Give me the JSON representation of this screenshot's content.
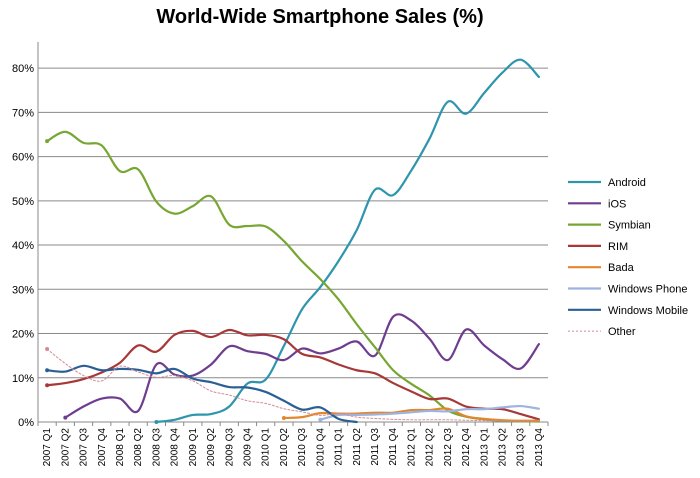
{
  "chart_data": {
    "type": "line",
    "title": "World-Wide Smartphone Sales (%)",
    "xlabel": "",
    "ylabel": "",
    "ylim": [
      0,
      85
    ],
    "yticks": [
      0,
      10,
      20,
      30,
      40,
      50,
      60,
      70,
      80
    ],
    "ytick_labels": [
      "0%",
      "10%",
      "20%",
      "30%",
      "40%",
      "50%",
      "60%",
      "70%",
      "80%"
    ],
    "grid": true,
    "legend_position": "right",
    "categories": [
      "2007 Q1",
      "2007 Q2",
      "2007 Q3",
      "2007 Q4",
      "2008 Q1",
      "2008 Q2",
      "2008 Q3",
      "2008 Q4",
      "2009 Q1",
      "2009 Q2",
      "2009 Q3",
      "2009 Q4",
      "2010 Q1",
      "2010 Q2",
      "2010 Q3",
      "2010 Q4",
      "2011 Q1",
      "2011 Q2",
      "2011 Q3",
      "2011 Q4",
      "2012 Q1",
      "2012 Q2",
      "2012 Q3",
      "2012 Q4",
      "2013 Q1",
      "2013 Q2",
      "2013 Q3",
      "2013 Q4"
    ],
    "series": [
      {
        "name": "Android",
        "color": "#2e95ac",
        "dashed": false,
        "values": [
          null,
          null,
          null,
          null,
          null,
          null,
          0,
          0.5,
          1.6,
          1.8,
          3.5,
          8.7,
          9.6,
          17.2,
          25.5,
          30.5,
          36.4,
          43.4,
          52.5,
          51.3,
          56.9,
          64.1,
          72.4,
          69.7,
          74.4,
          79.0,
          81.9,
          78.0
        ]
      },
      {
        "name": "iOS",
        "color": "#6e3d8f",
        "dashed": false,
        "values": [
          null,
          1,
          3.5,
          5.3,
          5.3,
          2.5,
          13.0,
          10.7,
          10.5,
          13.0,
          17.1,
          16.0,
          15.4,
          14.0,
          16.6,
          15.5,
          16.6,
          18.2,
          15.0,
          23.8,
          22.9,
          18.8,
          14.0,
          20.9,
          17.3,
          14.2,
          12.1,
          17.6
        ]
      },
      {
        "name": "Symbian",
        "color": "#77a633",
        "dashed": false,
        "values": [
          63.5,
          65.6,
          63.1,
          62.5,
          56.7,
          57.1,
          49.8,
          47.1,
          48.8,
          51.0,
          44.6,
          44.3,
          44.2,
          40.9,
          36.3,
          32.3,
          27.7,
          22.1,
          16.9,
          11.7,
          8.6,
          6.0,
          2.6,
          1.2,
          0.6,
          0.3,
          0.2,
          0.1
        ]
      },
      {
        "name": "RIM",
        "color": "#a83838",
        "dashed": false,
        "values": [
          8.3,
          8.8,
          9.7,
          11.2,
          13.4,
          17.3,
          15.9,
          19.7,
          20.6,
          19.2,
          20.8,
          19.6,
          19.7,
          18.7,
          15.4,
          14.6,
          13.0,
          11.7,
          11.0,
          8.8,
          6.9,
          5.2,
          5.3,
          3.5,
          3.0,
          2.9,
          1.8,
          0.6
        ]
      },
      {
        "name": "Bada",
        "color": "#e3872e",
        "dashed": false,
        "values": [
          null,
          null,
          null,
          null,
          null,
          null,
          null,
          null,
          null,
          null,
          null,
          null,
          null,
          0.9,
          1.1,
          2.0,
          1.9,
          1.9,
          2.1,
          2.1,
          2.7,
          2.7,
          3.0,
          1.3,
          0.7,
          0.4,
          0.3,
          0.3
        ]
      },
      {
        "name": "Windows Phone",
        "color": "#9db3e0",
        "dashed": false,
        "values": [
          null,
          null,
          null,
          null,
          null,
          null,
          null,
          null,
          null,
          null,
          null,
          null,
          null,
          null,
          null,
          0.5,
          1.6,
          1.6,
          1.7,
          1.9,
          2.2,
          2.5,
          2.4,
          2.9,
          2.9,
          3.3,
          3.6,
          3.0
        ]
      },
      {
        "name": "Windows Mobile",
        "color": "#2a5f96",
        "dashed": false,
        "values": [
          11.7,
          11.4,
          12.7,
          11.7,
          12.0,
          11.8,
          11.0,
          12.0,
          9.8,
          9.0,
          7.9,
          7.8,
          6.8,
          4.8,
          2.8,
          3.3,
          0.7,
          0,
          null,
          null,
          null,
          null,
          null,
          null,
          null,
          null,
          null,
          null
        ]
      },
      {
        "name": "Other",
        "color": "#d38a95",
        "dashed": true,
        "values": [
          16.5,
          13.2,
          10.5,
          9.3,
          12.6,
          11.3,
          10.1,
          10.5,
          9.3,
          7.0,
          6.1,
          4.8,
          4.2,
          3.0,
          2.3,
          1.5,
          1.9,
          1.1,
          0.8,
          0.6,
          0.5,
          0.5,
          0.5,
          0.4,
          0.3,
          0.3,
          0.2,
          0.2
        ]
      }
    ]
  }
}
